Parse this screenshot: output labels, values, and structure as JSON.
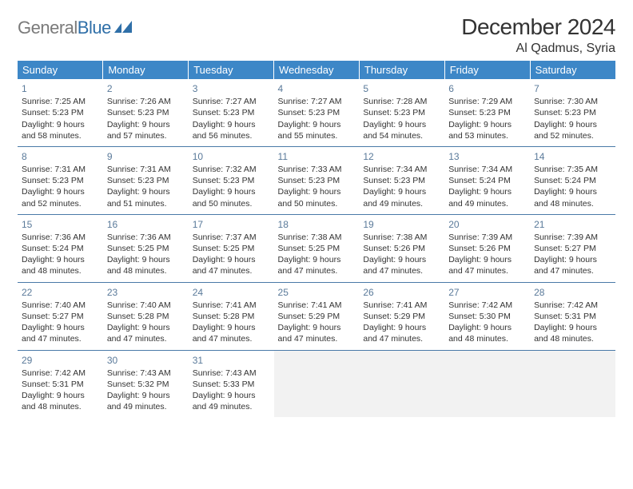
{
  "logo": {
    "part1": "General",
    "part2": "Blue"
  },
  "title": "December 2024",
  "subtitle": "Al Qadmus, Syria",
  "colors": {
    "header_bg": "#3d87c7",
    "header_fg": "#ffffff",
    "row_border": "#4a7aa8",
    "daynum": "#5a7a9a",
    "empty_bg": "#f2f2f2",
    "logo_gray": "#7a7a7a",
    "logo_blue": "#2f6fa8"
  },
  "daysOfWeek": [
    "Sunday",
    "Monday",
    "Tuesday",
    "Wednesday",
    "Thursday",
    "Friday",
    "Saturday"
  ],
  "weeks": [
    [
      {
        "n": "1",
        "sunrise": "7:25 AM",
        "sunset": "5:23 PM",
        "dayH": "9",
        "dayM": "58"
      },
      {
        "n": "2",
        "sunrise": "7:26 AM",
        "sunset": "5:23 PM",
        "dayH": "9",
        "dayM": "57"
      },
      {
        "n": "3",
        "sunrise": "7:27 AM",
        "sunset": "5:23 PM",
        "dayH": "9",
        "dayM": "56"
      },
      {
        "n": "4",
        "sunrise": "7:27 AM",
        "sunset": "5:23 PM",
        "dayH": "9",
        "dayM": "55"
      },
      {
        "n": "5",
        "sunrise": "7:28 AM",
        "sunset": "5:23 PM",
        "dayH": "9",
        "dayM": "54"
      },
      {
        "n": "6",
        "sunrise": "7:29 AM",
        "sunset": "5:23 PM",
        "dayH": "9",
        "dayM": "53"
      },
      {
        "n": "7",
        "sunrise": "7:30 AM",
        "sunset": "5:23 PM",
        "dayH": "9",
        "dayM": "52"
      }
    ],
    [
      {
        "n": "8",
        "sunrise": "7:31 AM",
        "sunset": "5:23 PM",
        "dayH": "9",
        "dayM": "52"
      },
      {
        "n": "9",
        "sunrise": "7:31 AM",
        "sunset": "5:23 PM",
        "dayH": "9",
        "dayM": "51"
      },
      {
        "n": "10",
        "sunrise": "7:32 AM",
        "sunset": "5:23 PM",
        "dayH": "9",
        "dayM": "50"
      },
      {
        "n": "11",
        "sunrise": "7:33 AM",
        "sunset": "5:23 PM",
        "dayH": "9",
        "dayM": "50"
      },
      {
        "n": "12",
        "sunrise": "7:34 AM",
        "sunset": "5:23 PM",
        "dayH": "9",
        "dayM": "49"
      },
      {
        "n": "13",
        "sunrise": "7:34 AM",
        "sunset": "5:24 PM",
        "dayH": "9",
        "dayM": "49"
      },
      {
        "n": "14",
        "sunrise": "7:35 AM",
        "sunset": "5:24 PM",
        "dayH": "9",
        "dayM": "48"
      }
    ],
    [
      {
        "n": "15",
        "sunrise": "7:36 AM",
        "sunset": "5:24 PM",
        "dayH": "9",
        "dayM": "48"
      },
      {
        "n": "16",
        "sunrise": "7:36 AM",
        "sunset": "5:25 PM",
        "dayH": "9",
        "dayM": "48"
      },
      {
        "n": "17",
        "sunrise": "7:37 AM",
        "sunset": "5:25 PM",
        "dayH": "9",
        "dayM": "47"
      },
      {
        "n": "18",
        "sunrise": "7:38 AM",
        "sunset": "5:25 PM",
        "dayH": "9",
        "dayM": "47"
      },
      {
        "n": "19",
        "sunrise": "7:38 AM",
        "sunset": "5:26 PM",
        "dayH": "9",
        "dayM": "47"
      },
      {
        "n": "20",
        "sunrise": "7:39 AM",
        "sunset": "5:26 PM",
        "dayH": "9",
        "dayM": "47"
      },
      {
        "n": "21",
        "sunrise": "7:39 AM",
        "sunset": "5:27 PM",
        "dayH": "9",
        "dayM": "47"
      }
    ],
    [
      {
        "n": "22",
        "sunrise": "7:40 AM",
        "sunset": "5:27 PM",
        "dayH": "9",
        "dayM": "47"
      },
      {
        "n": "23",
        "sunrise": "7:40 AM",
        "sunset": "5:28 PM",
        "dayH": "9",
        "dayM": "47"
      },
      {
        "n": "24",
        "sunrise": "7:41 AM",
        "sunset": "5:28 PM",
        "dayH": "9",
        "dayM": "47"
      },
      {
        "n": "25",
        "sunrise": "7:41 AM",
        "sunset": "5:29 PM",
        "dayH": "9",
        "dayM": "47"
      },
      {
        "n": "26",
        "sunrise": "7:41 AM",
        "sunset": "5:29 PM",
        "dayH": "9",
        "dayM": "47"
      },
      {
        "n": "27",
        "sunrise": "7:42 AM",
        "sunset": "5:30 PM",
        "dayH": "9",
        "dayM": "48"
      },
      {
        "n": "28",
        "sunrise": "7:42 AM",
        "sunset": "5:31 PM",
        "dayH": "9",
        "dayM": "48"
      }
    ],
    [
      {
        "n": "29",
        "sunrise": "7:42 AM",
        "sunset": "5:31 PM",
        "dayH": "9",
        "dayM": "48"
      },
      {
        "n": "30",
        "sunrise": "7:43 AM",
        "sunset": "5:32 PM",
        "dayH": "9",
        "dayM": "49"
      },
      {
        "n": "31",
        "sunrise": "7:43 AM",
        "sunset": "5:33 PM",
        "dayH": "9",
        "dayM": "49"
      },
      {
        "empty": true
      },
      {
        "empty": true
      },
      {
        "empty": true
      },
      {
        "empty": true
      }
    ]
  ],
  "labels": {
    "sunrise": "Sunrise:",
    "sunset": "Sunset:",
    "daylight_prefix": "Daylight:",
    "hours_word": "hours",
    "and_word": "and",
    "minutes_word": "minutes."
  }
}
